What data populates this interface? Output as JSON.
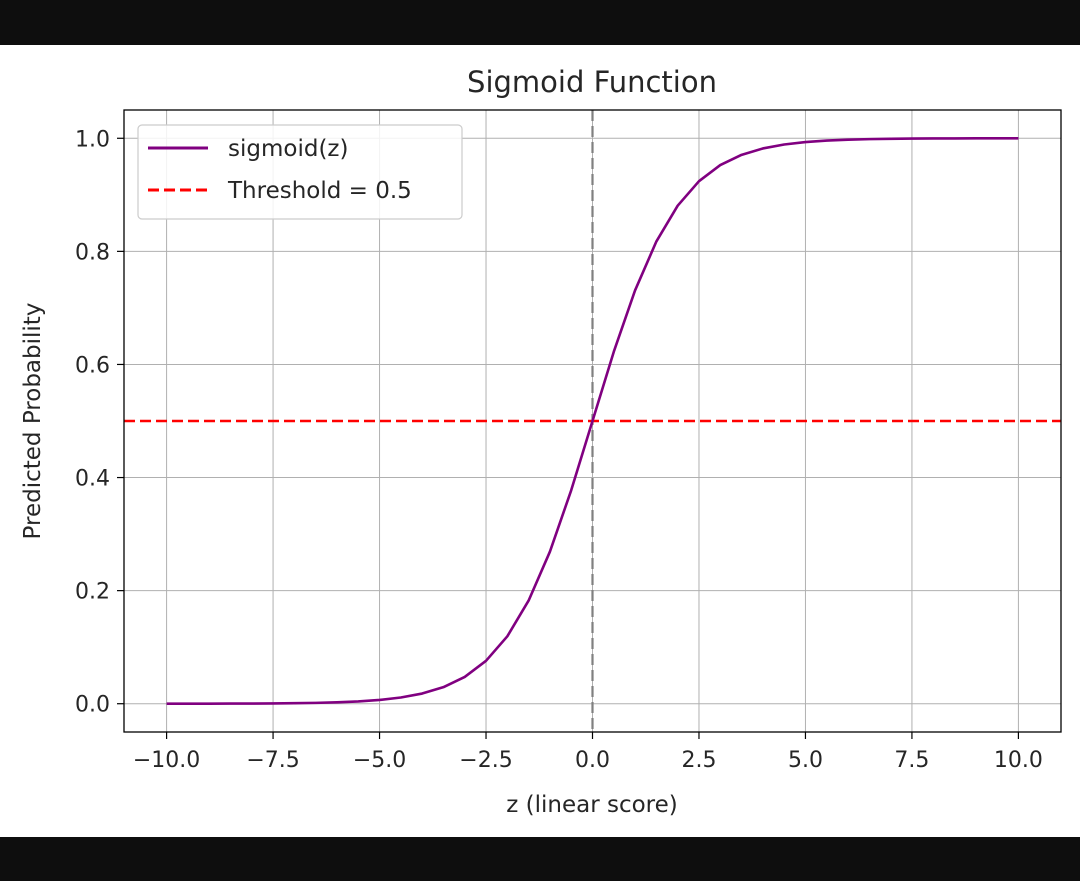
{
  "colors": {
    "sigmoid": "#800080",
    "threshold": "#ff0000",
    "vline": "#808080",
    "grid": "#b0b0b0",
    "frame_bg": "#0e0e0e"
  },
  "chart_data": {
    "type": "line",
    "title": "Sigmoid Function",
    "xlabel": "z (linear score)",
    "ylabel": "Predicted Probability",
    "xlim": [
      -11,
      11
    ],
    "ylim": [
      -0.05,
      1.05
    ],
    "x_ticks": [
      -10,
      -7.5,
      -5,
      -2.5,
      0,
      2.5,
      5,
      7.5,
      10
    ],
    "x_tick_labels": [
      "−10.0",
      "−7.5",
      "−5.0",
      "−2.5",
      "0.0",
      "2.5",
      "5.0",
      "7.5",
      "10.0"
    ],
    "y_ticks": [
      0,
      0.2,
      0.4,
      0.6,
      0.8,
      1.0
    ],
    "y_tick_labels": [
      "0.0",
      "0.2",
      "0.4",
      "0.6",
      "0.8",
      "1.0"
    ],
    "grid": true,
    "legend_position": "top-left",
    "series": [
      {
        "name": "sigmoid(z)",
        "style": "solid",
        "x": [
          -10,
          -9.5,
          -9,
          -8.5,
          -8,
          -7.5,
          -7,
          -6.5,
          -6,
          -5.5,
          -5,
          -4.5,
          -4,
          -3.5,
          -3,
          -2.5,
          -2,
          -1.5,
          -1,
          -0.5,
          0,
          0.5,
          1,
          1.5,
          2,
          2.5,
          3,
          3.5,
          4,
          4.5,
          5,
          5.5,
          6,
          6.5,
          7,
          7.5,
          8,
          8.5,
          9,
          9.5,
          10
        ],
        "y": [
          4.54e-05,
          7.49e-05,
          0.0001234,
          0.0002035,
          0.0003354,
          0.0005527,
          0.000911,
          0.0015,
          0.00247,
          0.00407,
          0.00669,
          0.01099,
          0.01799,
          0.02931,
          0.04743,
          0.07586,
          0.1192,
          0.1824,
          0.2689,
          0.3775,
          0.5,
          0.6225,
          0.7311,
          0.8176,
          0.8808,
          0.9241,
          0.9526,
          0.9707,
          0.982,
          0.989,
          0.9933,
          0.9959,
          0.9975,
          0.9985,
          0.9991,
          0.9994,
          0.9997,
          0.9998,
          0.9999,
          0.9999,
          1.0
        ]
      },
      {
        "name": "Threshold = 0.5",
        "style": "dashed",
        "kind": "hline",
        "y": 0.5
      }
    ],
    "vline": {
      "x": 0,
      "style": "dashed"
    }
  }
}
